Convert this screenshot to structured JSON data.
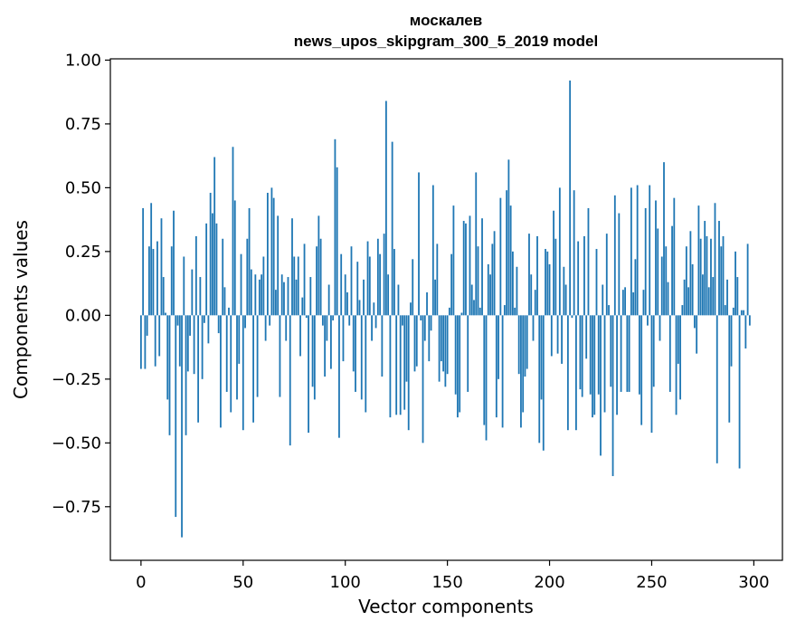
{
  "chart_data": {
    "type": "bar",
    "title": [
      "москалев",
      "news_upos_skipgram_300_5_2019 model"
    ],
    "xlabel": "Vector components",
    "ylabel": "Components values",
    "xlim": [
      -15,
      314
    ],
    "ylim": [
      -0.96,
      1.005
    ],
    "xticks": [
      0,
      50,
      100,
      150,
      200,
      250,
      300
    ],
    "yticks": [
      -0.75,
      -0.5,
      -0.25,
      0.0,
      0.25,
      0.5,
      0.75,
      1.0
    ],
    "ytick_labels": [
      "−0.75",
      "−0.50",
      "−0.25",
      "0.00",
      "0.25",
      "0.50",
      "0.75",
      "1.00"
    ],
    "bar_color": "#1f77b4",
    "grid": false,
    "values": [
      -0.21,
      0.42,
      -0.21,
      -0.08,
      0.27,
      0.44,
      0.26,
      -0.2,
      0.29,
      -0.16,
      0.38,
      0.15,
      0.01,
      -0.33,
      -0.47,
      0.27,
      0.41,
      -0.79,
      -0.04,
      -0.2,
      -0.87,
      0.23,
      -0.47,
      -0.22,
      -0.08,
      0.18,
      -0.23,
      0.31,
      -0.42,
      0.15,
      -0.25,
      -0.03,
      0.36,
      -0.11,
      0.48,
      0.4,
      0.62,
      0.36,
      -0.07,
      -0.44,
      0.3,
      0.11,
      -0.3,
      0.03,
      -0.38,
      0.66,
      0.45,
      -0.33,
      -0.19,
      0.24,
      -0.45,
      -0.05,
      0.3,
      0.42,
      0.18,
      -0.42,
      0.16,
      -0.32,
      0.14,
      0.16,
      0.23,
      -0.1,
      0.48,
      -0.04,
      0.5,
      0.46,
      0.1,
      0.39,
      -0.32,
      0.16,
      0.13,
      -0.1,
      0.15,
      -0.51,
      0.38,
      0.23,
      0.14,
      0.23,
      -0.16,
      0.07,
      0.28,
      -0.01,
      -0.46,
      0.15,
      -0.28,
      -0.33,
      0.27,
      0.39,
      0.3,
      -0.04,
      -0.24,
      -0.1,
      0.12,
      -0.21,
      -0.02,
      0.69,
      0.58,
      -0.48,
      0.24,
      -0.18,
      0.16,
      0.09,
      -0.04,
      0.27,
      -0.22,
      -0.3,
      0.21,
      0.06,
      -0.33,
      0.14,
      -0.38,
      0.29,
      0.23,
      -0.1,
      0.05,
      -0.05,
      0.3,
      0.24,
      -0.24,
      0.32,
      0.84,
      0.16,
      -0.4,
      0.68,
      0.26,
      -0.39,
      0.12,
      -0.39,
      -0.04,
      -0.37,
      -0.26,
      -0.45,
      0.05,
      0.22,
      -0.22,
      -0.2,
      0.56,
      -0.02,
      -0.5,
      -0.1,
      0.09,
      -0.18,
      -0.06,
      0.51,
      0.14,
      0.28,
      -0.26,
      -0.18,
      -0.22,
      -0.28,
      -0.23,
      0.03,
      0.24,
      0.43,
      -0.31,
      -0.4,
      -0.38,
      0.01,
      0.37,
      0.36,
      -0.3,
      0.39,
      0.12,
      0.06,
      0.56,
      0.27,
      0.03,
      0.38,
      -0.43,
      -0.49,
      0.2,
      0.16,
      0.28,
      0.33,
      -0.4,
      -0.25,
      0.46,
      -0.44,
      0.04,
      0.49,
      0.61,
      0.43,
      0.25,
      0.03,
      0.19,
      -0.23,
      -0.44,
      -0.38,
      -0.24,
      -0.21,
      0.32,
      0.16,
      -0.1,
      0.1,
      0.31,
      -0.5,
      -0.33,
      -0.53,
      0.26,
      0.25,
      0.2,
      -0.16,
      0.41,
      0.3,
      -0.15,
      0.5,
      -0.19,
      0.19,
      0.12,
      -0.45,
      0.92,
      -0.01,
      0.49,
      -0.45,
      0.29,
      -0.29,
      -0.32,
      0.31,
      -0.17,
      0.42,
      -0.31,
      -0.4,
      -0.39,
      0.26,
      -0.31,
      -0.55,
      0.12,
      -0.38,
      0.32,
      0.04,
      -0.28,
      -0.63,
      0.47,
      -0.39,
      0.4,
      -0.3,
      0.1,
      0.11,
      -0.3,
      -0.3,
      0.5,
      0.09,
      0.22,
      0.51,
      -0.31,
      -0.43,
      0.1,
      0.42,
      -0.04,
      0.51,
      -0.46,
      -0.28,
      0.45,
      0.34,
      -0.1,
      0.23,
      0.6,
      0.27,
      0.13,
      -0.3,
      0.35,
      0.46,
      -0.39,
      -0.19,
      -0.33,
      0.04,
      0.14,
      0.27,
      0.11,
      0.33,
      0.2,
      -0.05,
      -0.15,
      0.43,
      0.3,
      0.16,
      0.37,
      0.31,
      0.11,
      0.3,
      0.15,
      0.44,
      -0.58,
      0.37,
      0.27,
      0.31,
      0.04,
      0.14,
      -0.42,
      -0.2,
      0.03,
      0.25,
      0.15,
      -0.6,
      0.02,
      0.02,
      -0.13,
      0.28,
      -0.04
    ]
  }
}
